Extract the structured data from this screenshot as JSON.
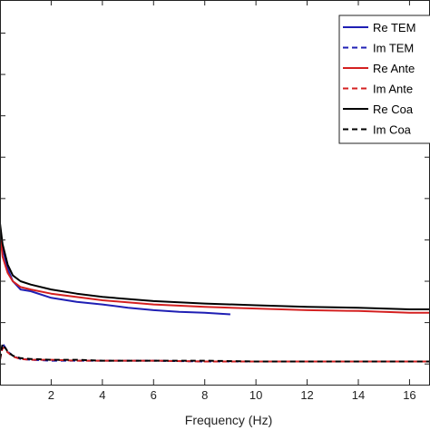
{
  "chart_data": {
    "type": "line",
    "xlabel": "Frequency (Hz)",
    "ylabel": "",
    "title": "",
    "xlim": [
      0,
      16.8
    ],
    "ylim": [
      -0.25,
      4.4
    ],
    "xticks": [
      2,
      4,
      6,
      8,
      10,
      12,
      14,
      16
    ],
    "grid": false,
    "legend_position": "top-right",
    "series": [
      {
        "name": "Re TEM",
        "color": "#1f1fb4",
        "dash": "solid",
        "x": [
          0.0,
          0.1,
          0.3,
          0.5,
          0.8,
          1.2,
          2.0,
          3.0,
          4.0,
          5.0,
          6.0,
          7.0,
          8.0,
          9.0
        ],
        "y": [
          1.65,
          1.4,
          1.15,
          1.0,
          0.9,
          0.88,
          0.8,
          0.75,
          0.72,
          0.68,
          0.65,
          0.63,
          0.62,
          0.6
        ]
      },
      {
        "name": "Im TEM",
        "color": "#1f1fb4",
        "dash": "dashed",
        "x": [
          0.0,
          0.1,
          0.3,
          0.5,
          0.8,
          1.2,
          2.0,
          3.0,
          4.0,
          6.0,
          8.0,
          10.0,
          12.0,
          14.0,
          16.0,
          16.8
        ],
        "y": [
          0.05,
          0.25,
          0.15,
          0.1,
          0.06,
          0.05,
          0.04,
          0.04,
          0.04,
          0.04,
          0.03,
          0.03,
          0.03,
          0.03,
          0.03,
          0.03
        ]
      },
      {
        "name": "Re Antenna",
        "color": "#d42020",
        "dash": "solid",
        "x": [
          0.0,
          0.1,
          0.3,
          0.5,
          0.8,
          1.2,
          2.0,
          4.0,
          6.0,
          8.0,
          10.0,
          12.0,
          14.0,
          16.0,
          16.8
        ],
        "y": [
          1.6,
          1.3,
          1.1,
          1.0,
          0.93,
          0.9,
          0.85,
          0.77,
          0.72,
          0.69,
          0.67,
          0.65,
          0.64,
          0.62,
          0.62
        ]
      },
      {
        "name": "Im Antenna",
        "color": "#d42020",
        "dash": "dashed",
        "x": [
          0.0,
          0.1,
          0.3,
          0.5,
          0.8,
          1.2,
          2.0,
          3.0,
          4.0,
          6.0,
          8.0,
          10.0,
          12.0,
          14.0,
          16.0,
          16.8
        ],
        "y": [
          0.05,
          0.2,
          0.14,
          0.09,
          0.06,
          0.05,
          0.05,
          0.04,
          0.04,
          0.04,
          0.03,
          0.03,
          0.03,
          0.03,
          0.03,
          0.03
        ]
      },
      {
        "name": "Re Coax",
        "color": "#000000",
        "dash": "solid",
        "x": [
          0.0,
          0.1,
          0.3,
          0.5,
          0.8,
          1.2,
          2.0,
          3.0,
          4.0,
          6.0,
          8.0,
          10.0,
          12.0,
          14.0,
          16.0,
          16.8
        ],
        "y": [
          1.7,
          1.45,
          1.2,
          1.07,
          1.0,
          0.96,
          0.9,
          0.85,
          0.81,
          0.76,
          0.73,
          0.71,
          0.69,
          0.68,
          0.66,
          0.66
        ]
      },
      {
        "name": "Im Coax",
        "color": "#000000",
        "dash": "dashed",
        "x": [
          0.0,
          0.1,
          0.3,
          0.5,
          0.8,
          1.2,
          2.0,
          3.0,
          4.0,
          6.0,
          8.0,
          10.0,
          12.0,
          14.0,
          16.0,
          16.8
        ],
        "y": [
          0.06,
          0.24,
          0.15,
          0.1,
          0.07,
          0.06,
          0.05,
          0.05,
          0.04,
          0.04,
          0.04,
          0.03,
          0.03,
          0.03,
          0.03,
          0.03
        ]
      }
    ],
    "legend_entries_visible": [
      "Re TEM",
      "Im TEM",
      "Re Ante",
      "Im Ante",
      "Re Coa",
      "Im Coa"
    ]
  }
}
